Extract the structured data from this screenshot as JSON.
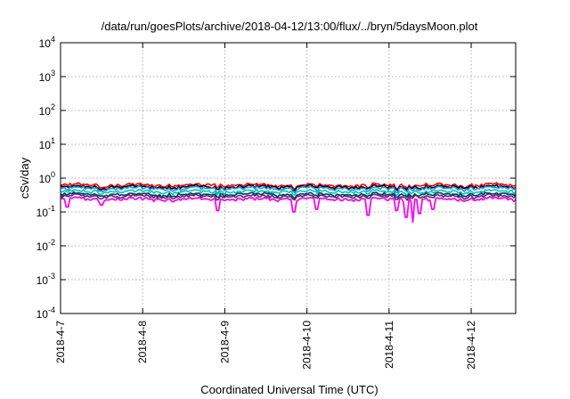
{
  "chart_data": {
    "type": "line",
    "title": "/data/run/goesPlots/archive/2018-04-12/13:00/flux/../bryn/5daysMoon.plot",
    "xlabel": "Coordinated Universal Time (UTC)",
    "ylabel": "cSv/day",
    "yscale": "log",
    "ylim": [
      0.0001,
      10000
    ],
    "xlim": [
      "2018-04-07T00:00",
      "2018-04-12T13:00"
    ],
    "grid": true,
    "y_ticks": [
      {
        "base": "10",
        "exp": "-4",
        "value": 0.0001
      },
      {
        "base": "10",
        "exp": "-3",
        "value": 0.001
      },
      {
        "base": "10",
        "exp": "-2",
        "value": 0.01
      },
      {
        "base": "10",
        "exp": "-1",
        "value": 0.1
      },
      {
        "base": "10",
        "exp": "0",
        "value": 1
      },
      {
        "base": "10",
        "exp": "1",
        "value": 10
      },
      {
        "base": "10",
        "exp": "2",
        "value": 100
      },
      {
        "base": "10",
        "exp": "3",
        "value": 1000
      },
      {
        "base": "10",
        "exp": "4",
        "value": 10000
      }
    ],
    "x_ticks": [
      {
        "label": "2018-4-7",
        "date": "2018-04-07T00:00"
      },
      {
        "label": "2018-4-8",
        "date": "2018-04-08T00:00"
      },
      {
        "label": "2018-4-9",
        "date": "2018-04-09T00:00"
      },
      {
        "label": "2018-4-10",
        "date": "2018-04-10T00:00"
      },
      {
        "label": "2018-4-11",
        "date": "2018-04-11T00:00"
      },
      {
        "label": "2018-4-12",
        "date": "2018-04-12T00:00"
      }
    ],
    "series": [
      {
        "color": "#ff0000",
        "level": 0.62,
        "dip_scale": 0.1
      },
      {
        "color": "#000000",
        "level": 0.55,
        "dip_scale": 0.1
      },
      {
        "color": "#1e90ff",
        "level": 0.5,
        "dip_scale": 0.15
      },
      {
        "color": "#00c8a0",
        "level": 0.4,
        "dip_scale": 0.1
      },
      {
        "color": "#003080",
        "level": 0.33,
        "dip_scale": 0.1
      },
      {
        "color": "#404040",
        "level": 0.29,
        "dip_scale": 0.1
      },
      {
        "color": "#ff00ff",
        "level": 0.24,
        "dip_scale": 1.0
      }
    ],
    "dips": [
      {
        "date": "2018-04-07T02:00",
        "value": 0.14
      },
      {
        "date": "2018-04-07T12:00",
        "value": 0.16
      },
      {
        "date": "2018-04-08T22:00",
        "value": 0.11
      },
      {
        "date": "2018-04-09T20:00",
        "value": 0.1
      },
      {
        "date": "2018-04-10T03:00",
        "value": 0.12
      },
      {
        "date": "2018-04-10T18:00",
        "value": 0.08
      },
      {
        "date": "2018-04-11T02:00",
        "value": 0.11
      },
      {
        "date": "2018-04-11T05:00",
        "value": 0.07
      },
      {
        "date": "2018-04-11T07:00",
        "value": 0.05
      },
      {
        "date": "2018-04-11T09:00",
        "value": 0.09
      },
      {
        "date": "2018-04-11T13:00",
        "value": 0.12
      }
    ]
  }
}
